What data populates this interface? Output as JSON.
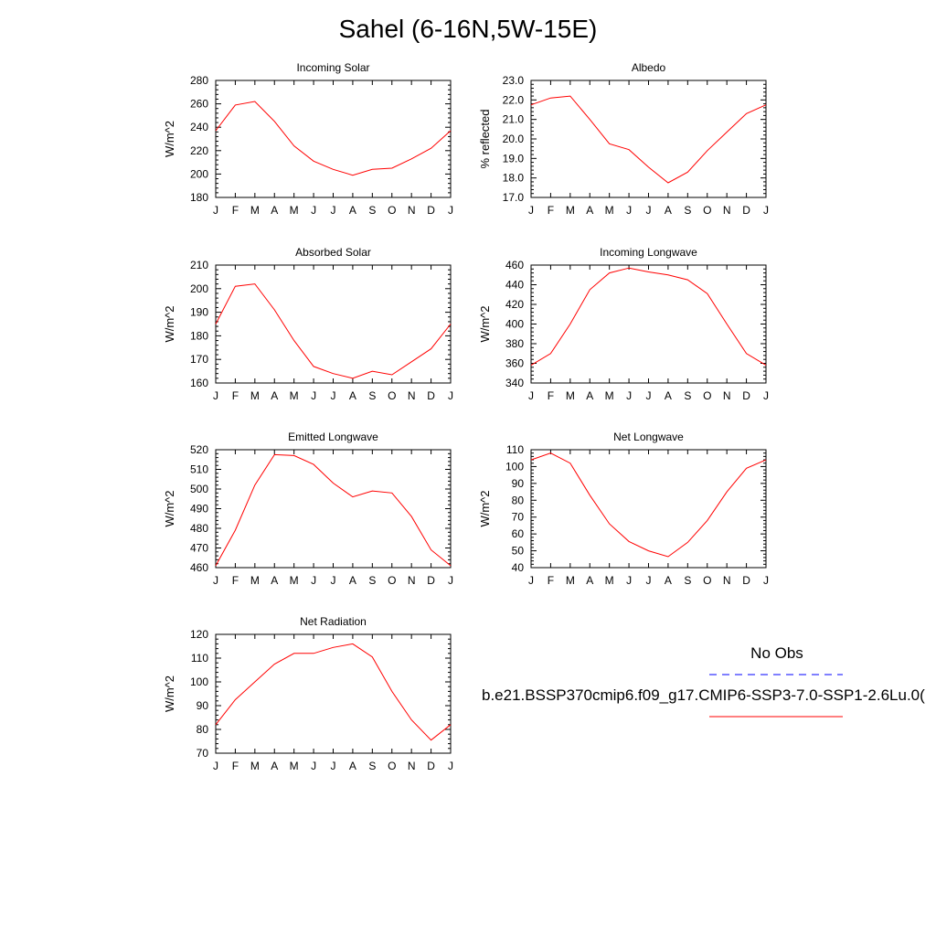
{
  "title": "Sahel (6-16N,5W-15E)",
  "month_ticks": [
    "J",
    "F",
    "M",
    "A",
    "M",
    "J",
    "J",
    "A",
    "S",
    "O",
    "N",
    "D",
    "J"
  ],
  "colors": {
    "model_line": "#ff0000",
    "obs_line": "#0000ff",
    "axis": "#000000"
  },
  "legend": {
    "obs_label": "No Obs",
    "model_label": "b.e21.BSSP370cmip6.f09_g17.CMIP6-SSP3-7.0-SSP1-2.6Lu.0("
  },
  "chart_data": [
    {
      "type": "line",
      "title": "Incoming Solar",
      "ylabel": "W/m^2",
      "ylim": [
        180,
        280
      ],
      "yticks": [
        180,
        200,
        220,
        240,
        260,
        280
      ],
      "y_tick_labels": [
        "180",
        "200",
        "220",
        "240",
        "260",
        "280"
      ],
      "series": [
        {
          "values": [
            237,
            259,
            262,
            245,
            224,
            211,
            204,
            199,
            204,
            205,
            213,
            222,
            237
          ]
        }
      ]
    },
    {
      "type": "line",
      "title": "Albedo",
      "ylabel": "% reflected",
      "ylim": [
        17.0,
        23.0
      ],
      "yticks": [
        17.0,
        18.0,
        19.0,
        20.0,
        21.0,
        22.0,
        23.0
      ],
      "y_tick_labels": [
        "17.0",
        "18.0",
        "19.0",
        "20.0",
        "21.0",
        "22.0",
        "23.0"
      ],
      "series": [
        {
          "values": [
            21.75,
            22.1,
            22.2,
            21.0,
            19.75,
            19.45,
            18.55,
            17.75,
            18.3,
            19.4,
            20.35,
            21.3,
            21.75
          ]
        }
      ]
    },
    {
      "type": "line",
      "title": "Absorbed Solar",
      "ylabel": "W/m^2",
      "ylim": [
        160,
        210
      ],
      "yticks": [
        160,
        170,
        180,
        190,
        200,
        210
      ],
      "y_tick_labels": [
        "160",
        "170",
        "180",
        "190",
        "200",
        "210"
      ],
      "series": [
        {
          "values": [
            185,
            201,
            202,
            191,
            178,
            167,
            164,
            162,
            165,
            163.5,
            169,
            174.5,
            185
          ]
        }
      ]
    },
    {
      "type": "line",
      "title": "Incoming Longwave",
      "ylabel": "W/m^2",
      "ylim": [
        340,
        460
      ],
      "yticks": [
        340,
        360,
        380,
        400,
        420,
        440,
        460
      ],
      "y_tick_labels": [
        "340",
        "360",
        "380",
        "400",
        "420",
        "440",
        "460"
      ],
      "series": [
        {
          "values": [
            358,
            370,
            400,
            435,
            452,
            457,
            453,
            450,
            445,
            431,
            400,
            370,
            358
          ]
        }
      ]
    },
    {
      "type": "line",
      "title": "Emitted Longwave",
      "ylabel": "W/m^2",
      "ylim": [
        460,
        520
      ],
      "yticks": [
        460,
        470,
        480,
        490,
        500,
        510,
        520
      ],
      "y_tick_labels": [
        "460",
        "470",
        "480",
        "490",
        "500",
        "510",
        "520"
      ],
      "series": [
        {
          "values": [
            461,
            479,
            502,
            517.5,
            517,
            512.5,
            503,
            496,
            499,
            498,
            486,
            469,
            461
          ]
        }
      ]
    },
    {
      "type": "line",
      "title": "Net Longwave",
      "ylabel": "W/m^2",
      "ylim": [
        40,
        110
      ],
      "yticks": [
        40,
        50,
        60,
        70,
        80,
        90,
        100,
        110
      ],
      "y_tick_labels": [
        "40",
        "50",
        "60",
        "70",
        "80",
        "90",
        "100",
        "110"
      ],
      "series": [
        {
          "values": [
            104,
            108,
            102,
            83,
            66,
            55.5,
            50,
            46.5,
            55,
            68,
            85,
            99,
            104
          ]
        }
      ]
    },
    {
      "type": "line",
      "title": "Net Radiation",
      "ylabel": "W/m^2",
      "ylim": [
        70,
        120
      ],
      "yticks": [
        70,
        80,
        90,
        100,
        110,
        120
      ],
      "y_tick_labels": [
        "70",
        "80",
        "90",
        "100",
        "110",
        "120"
      ],
      "series": [
        {
          "values": [
            82,
            92.5,
            100,
            107.5,
            112,
            112,
            114.5,
            116,
            110.5,
            96,
            84,
            75.5,
            82
          ]
        }
      ]
    }
  ]
}
